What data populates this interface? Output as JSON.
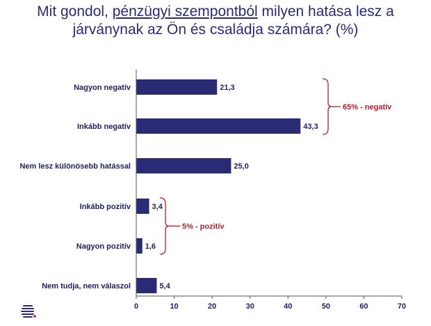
{
  "title": {
    "part1": "Mit gondol, ",
    "underlined": "pénzügyi szempontból",
    "part2": " milyen hatása lesz a",
    "line2": "járványnak az Ön és családja számára? (%)"
  },
  "colors": {
    "bar": "#2b2a74",
    "annotation": "#b0202e",
    "text": "#1f1f5f"
  },
  "logo_icon": "stacked-lines-logo-icon",
  "chart_data": {
    "type": "bar",
    "orientation": "horizontal",
    "title": "Mit gondol, pénzügyi szempontból milyen hatása lesz a járványnak az Ön és családja számára? (%)",
    "categories": [
      "Nagyon negatív",
      "Inkább negatív",
      "Nem lesz különösebb hatással",
      "Inkább pozitív",
      "Nagyon pozitív",
      "Nem tudja, nem válaszol"
    ],
    "values": [
      21.3,
      43.3,
      25.0,
      3.4,
      1.6,
      5.4
    ],
    "value_labels": [
      "21,3",
      "43,3",
      "25,0",
      "3,4",
      "1,6",
      "5,4"
    ],
    "xlim": [
      0,
      70
    ],
    "ticks": [
      0,
      10,
      20,
      30,
      40,
      50,
      60,
      70
    ],
    "grid": false,
    "annotations": [
      {
        "text": "65% - negatív",
        "categories": [
          "Nagyon negatív",
          "Inkább negatív"
        ]
      },
      {
        "text": "5% - pozitív",
        "categories": [
          "Inkább pozitív",
          "Nagyon pozitív"
        ]
      }
    ]
  }
}
